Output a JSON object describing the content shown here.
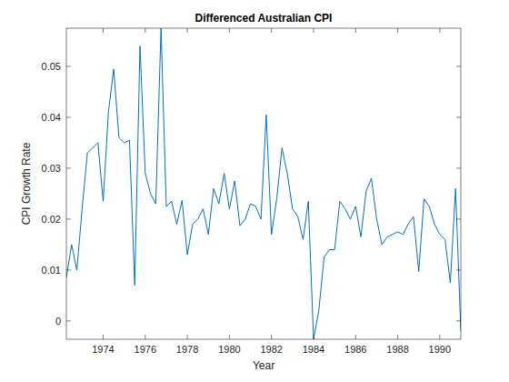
{
  "chart_data": {
    "type": "line",
    "title": "Differenced Australian CPI",
    "x_label": "Year",
    "y_label": "CPI Growth Rate",
    "x": [
      1972.25,
      1972.5,
      1972.75,
      1973,
      1973.25,
      1973.5,
      1973.75,
      1974,
      1974.25,
      1974.5,
      1974.75,
      1975,
      1975.25,
      1975.5,
      1975.75,
      1976,
      1976.25,
      1976.5,
      1976.75,
      1977,
      1977.25,
      1977.5,
      1977.75,
      1978,
      1978.25,
      1978.5,
      1978.75,
      1979,
      1979.25,
      1979.5,
      1979.75,
      1980,
      1980.25,
      1980.5,
      1980.75,
      1981,
      1981.25,
      1981.5,
      1981.75,
      1982,
      1982.25,
      1982.5,
      1982.75,
      1983,
      1983.25,
      1983.5,
      1983.75,
      1984,
      1984.25,
      1984.5,
      1984.75,
      1985,
      1985.25,
      1985.5,
      1985.75,
      1986,
      1986.25,
      1986.5,
      1986.75,
      1987,
      1987.25,
      1987.5,
      1987.75,
      1988,
      1988.25,
      1988.5,
      1988.75,
      1989,
      1989.25,
      1989.5,
      1989.75,
      1990,
      1990.25,
      1990.5,
      1990.75,
      1991
    ],
    "values": [
      0.0085,
      0.015,
      0.01,
      0.022,
      0.033,
      0.034,
      0.035,
      0.0235,
      0.041,
      0.0495,
      0.036,
      0.035,
      0.0355,
      0.007,
      0.054,
      0.029,
      0.025,
      0.023,
      0.0575,
      0.0225,
      0.0235,
      0.019,
      0.0237,
      0.013,
      0.019,
      0.02,
      0.022,
      0.017,
      0.026,
      0.023,
      0.029,
      0.022,
      0.0275,
      0.0187,
      0.02,
      0.023,
      0.0225,
      0.02,
      0.0405,
      0.017,
      0.024,
      0.034,
      0.029,
      0.022,
      0.0205,
      0.016,
      0.0235,
      -0.0036,
      0.002,
      0.0125,
      0.014,
      0.014,
      0.0235,
      0.022,
      0.02,
      0.0225,
      0.0165,
      0.0255,
      0.028,
      0.02,
      0.015,
      0.0165,
      0.017,
      0.0175,
      0.017,
      0.019,
      0.0205,
      0.0097,
      0.024,
      0.0225,
      0.019,
      0.017,
      0.016,
      0.0075,
      0.026,
      -0.002
    ],
    "color": "#0072bd",
    "xlim": [
      1972.25,
      1991
    ],
    "ylim": [
      -0.0036,
      0.0575
    ],
    "xticks": [
      1974,
      1976,
      1978,
      1980,
      1982,
      1984,
      1986,
      1988,
      1990
    ],
    "yticks": [
      0,
      0.01,
      0.02,
      0.03,
      0.04,
      0.05
    ],
    "grid": false
  }
}
